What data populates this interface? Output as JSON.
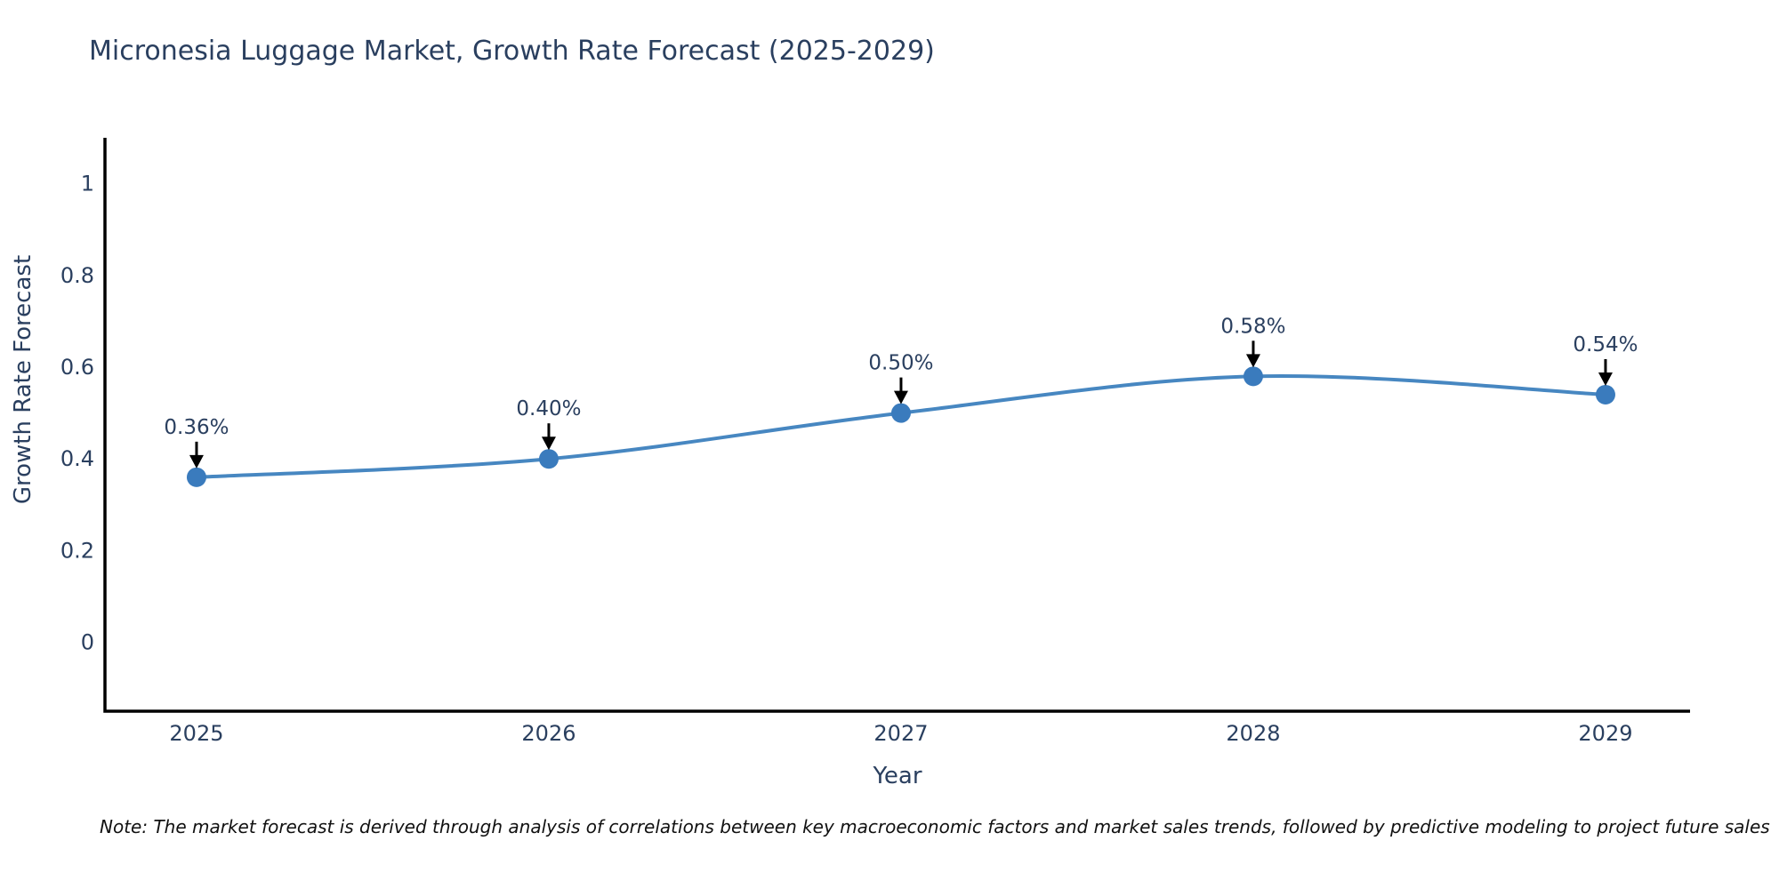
{
  "title": "Micronesia Luggage Market, Growth Rate Forecast (2025-2029)",
  "note": "Note: The market forecast is derived through analysis of correlations between key macroeconomic factors and market sales trends, followed by predictive modeling to project future sales",
  "chart_data": {
    "type": "line",
    "title": "Micronesia Luggage Market, Growth Rate Forecast (2025-2029)",
    "x": [
      2025,
      2026,
      2027,
      2028,
      2029
    ],
    "y": [
      0.36,
      0.4,
      0.5,
      0.58,
      0.54
    ],
    "point_labels": [
      "0.36%",
      "0.40%",
      "0.50%",
      "0.58%",
      "0.54%"
    ],
    "xlabel": "Year",
    "ylabel": "Growth Rate Forecast",
    "xlim": [
      2024.74,
      2029.24
    ],
    "ylim": [
      -0.15,
      1.1
    ],
    "xticks": [
      2025,
      2026,
      2027,
      2028,
      2029
    ],
    "xtick_labels": [
      "2025",
      "2026",
      "2027",
      "2028",
      "2029"
    ],
    "yticks": [
      0,
      0.2,
      0.4,
      0.6,
      0.8,
      1
    ],
    "ytick_labels": [
      "0",
      "0.2",
      "0.4",
      "0.6",
      "0.8",
      "1"
    ],
    "curve": "spline",
    "grid": false,
    "legend": null,
    "line_color": "#4787c1",
    "marker_color": "#3a7bbd",
    "axis_color": "#000000",
    "text_color": "#2a3f5f",
    "annotation_arrow_color": "#000000"
  }
}
